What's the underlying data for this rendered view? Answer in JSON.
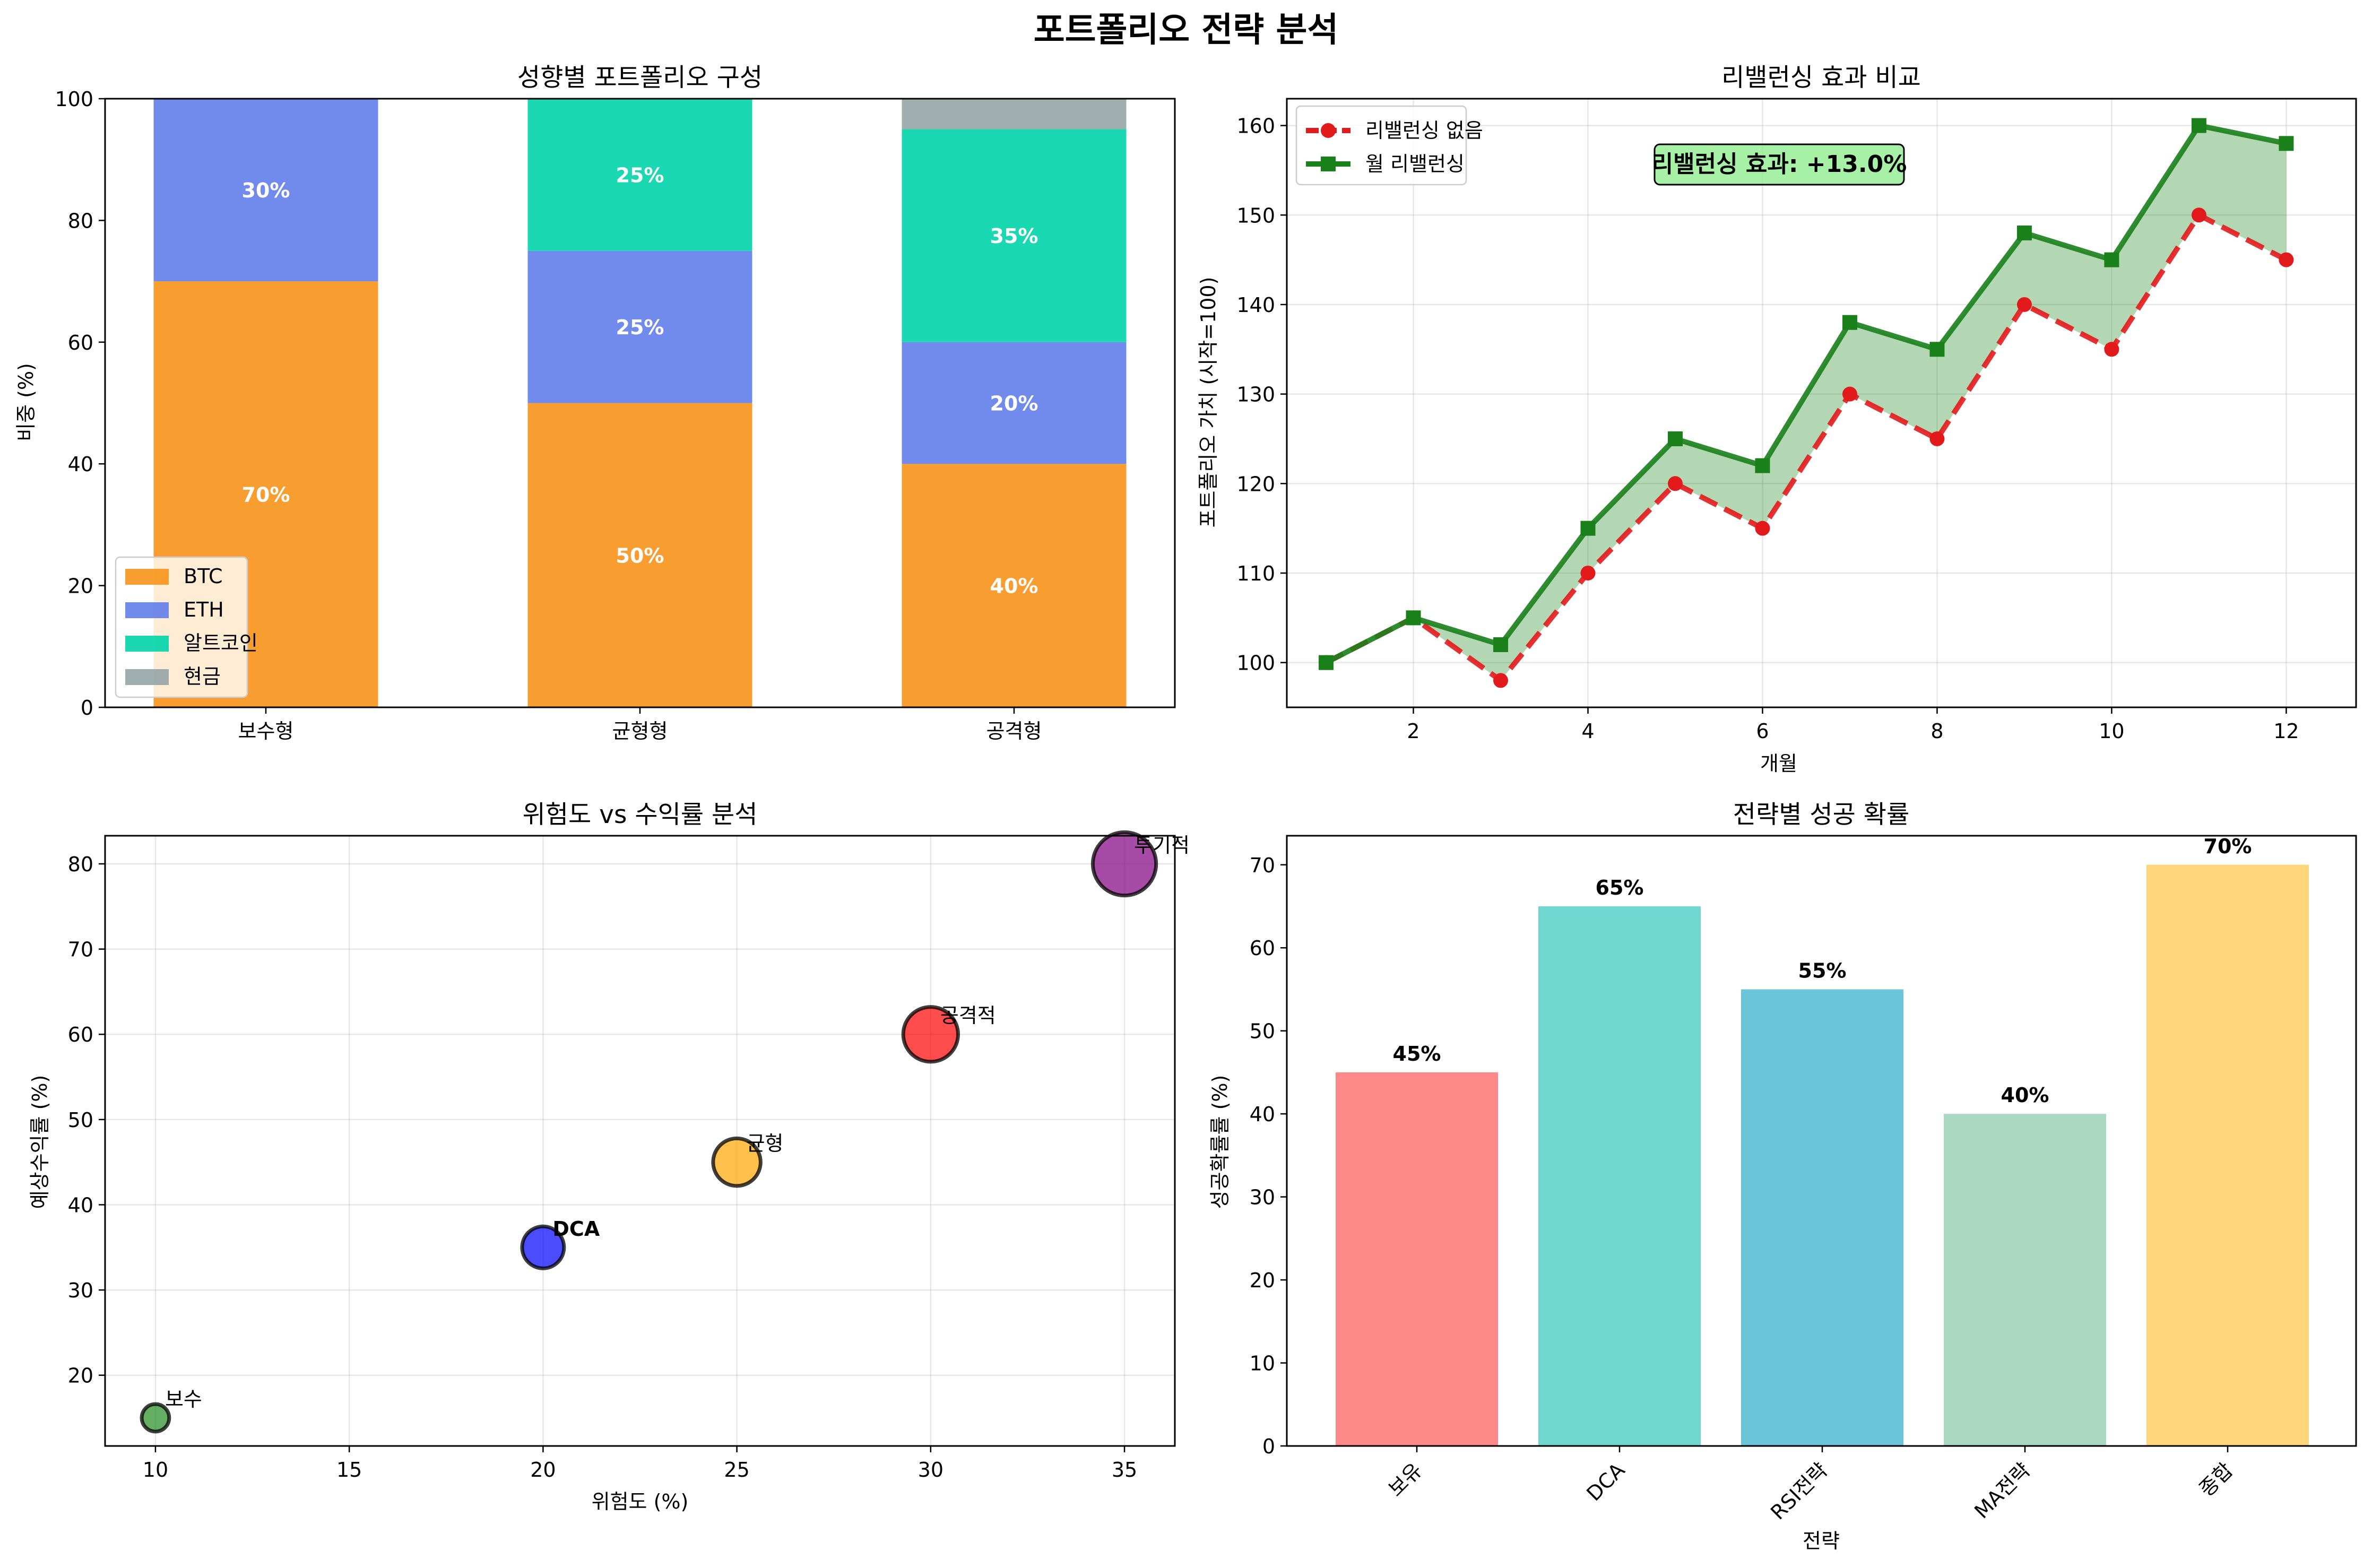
{
  "figure": {
    "suptitle": "포트폴리오 전략 분석"
  },
  "chart_data": [
    {
      "id": "allocation",
      "type": "bar",
      "stacked": true,
      "title": "성향별 포트폴리오 구성",
      "xlabel": "",
      "ylabel": "비중 (%)",
      "ylim": [
        0,
        100
      ],
      "yticks": [
        0,
        20,
        40,
        60,
        80,
        100
      ],
      "categories": [
        "보수형",
        "균형형",
        "공격형"
      ],
      "series": [
        {
          "name": "BTC",
          "color": "#f7931a",
          "values": [
            70,
            50,
            40
          ],
          "labels": [
            "70%",
            "50%",
            "40%"
          ]
        },
        {
          "name": "ETH",
          "color": "#627eea",
          "values": [
            30,
            25,
            20
          ],
          "labels": [
            "30%",
            "25%",
            "20%"
          ]
        },
        {
          "name": "알트코인",
          "color": "#00d4aa",
          "values": [
            0,
            25,
            35
          ],
          "labels": [
            "",
            "25%",
            "35%"
          ]
        },
        {
          "name": "현금",
          "color": "#95a5a6",
          "values": [
            0,
            0,
            5
          ],
          "labels": [
            "",
            "",
            ""
          ]
        }
      ],
      "legend": "lower-left",
      "grid": false
    },
    {
      "id": "rebalance",
      "type": "line",
      "title": "리밸런싱 효과 비교",
      "xlabel": "개월",
      "ylabel": "포트폴리오 가치 (시작=100)",
      "xlim": [
        0.55,
        12.8
      ],
      "ylim": [
        95,
        163
      ],
      "xticks": [
        2,
        4,
        6,
        8,
        10,
        12
      ],
      "yticks": [
        100,
        110,
        120,
        130,
        140,
        150,
        160
      ],
      "x": [
        1,
        2,
        3,
        4,
        5,
        6,
        7,
        8,
        9,
        10,
        11,
        12
      ],
      "series": [
        {
          "name": "리밸런싱 없음",
          "color": "#e31a1c",
          "style": "dashed",
          "marker": "circle",
          "values": [
            100,
            105,
            98,
            110,
            120,
            115,
            130,
            125,
            140,
            135,
            150,
            145
          ]
        },
        {
          "name": "월 리밸런싱",
          "color": "#1a801a",
          "style": "solid",
          "marker": "square",
          "values": [
            100,
            105,
            102,
            115,
            125,
            122,
            138,
            135,
            148,
            145,
            160,
            158
          ]
        }
      ],
      "annotation": "리밸런싱 효과: +13.0%",
      "legend": "upper-left",
      "grid": true
    },
    {
      "id": "risk_return",
      "type": "scatter",
      "title": "위험도 vs 수익률 분석",
      "xlabel": "위험도 (%)",
      "ylabel": "예상수익률 (%)",
      "xlim": [
        8.7,
        36.3
      ],
      "ylim": [
        11.7,
        83.3
      ],
      "xticks": [
        10,
        15,
        20,
        25,
        30,
        35
      ],
      "yticks": [
        20,
        30,
        40,
        50,
        60,
        70,
        80
      ],
      "points": [
        {
          "label": "보수",
          "x": 10,
          "y": 15,
          "size": 15,
          "color": "#228b22",
          "bold": false
        },
        {
          "label": "DCA",
          "x": 20,
          "y": 35,
          "size": 35,
          "color": "#0000ff",
          "bold": true
        },
        {
          "label": "균형",
          "x": 25,
          "y": 45,
          "size": 45,
          "color": "#ffa500",
          "bold": false
        },
        {
          "label": "공격적",
          "x": 30,
          "y": 60,
          "size": 60,
          "color": "#ff0000",
          "bold": false
        },
        {
          "label": "투기적",
          "x": 35,
          "y": 80,
          "size": 80,
          "color": "#800080",
          "bold": false
        }
      ],
      "grid": true
    },
    {
      "id": "success_rate",
      "type": "bar",
      "title": "전략별 성공 확률",
      "xlabel": "전략",
      "ylabel": "성공확률률 (%)",
      "ylim": [
        0,
        73.5
      ],
      "yticks": [
        0,
        10,
        20,
        30,
        40,
        50,
        60,
        70
      ],
      "categories": [
        "보유",
        "DCA",
        "RSI전략",
        "MA전략",
        "종합"
      ],
      "values": [
        45,
        65,
        55,
        40,
        70
      ],
      "labels": [
        "45%",
        "65%",
        "55%",
        "40%",
        "70%"
      ],
      "colors": [
        "#ff6b6b",
        "#4ecdc4",
        "#45b7d1",
        "#96ceb4",
        "#feca57"
      ],
      "grid": false
    }
  ]
}
